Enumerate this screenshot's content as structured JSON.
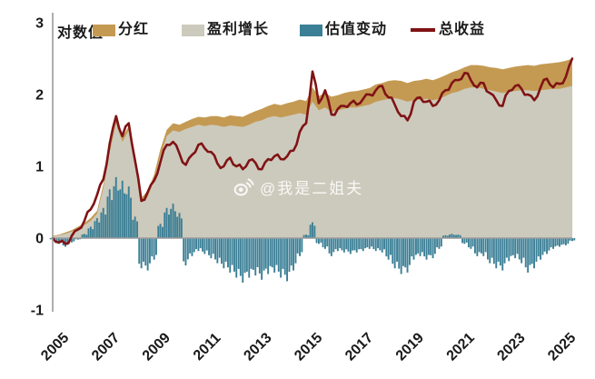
{
  "chart": {
    "y_axis_label": "对数值",
    "watermark_text": "@我是二姐夫",
    "legend": [
      {
        "label": "分红",
        "color": "#C49A53",
        "kind": "area"
      },
      {
        "label": "盈利增长",
        "color": "#CCCABC",
        "kind": "area"
      },
      {
        "label": "估值变动",
        "color": "#3B7F96",
        "kind": "bar"
      },
      {
        "label": "总收益",
        "color": "#801315",
        "kind": "line"
      }
    ],
    "colors": {
      "dividend_area": "#C49A53",
      "earnings_area": "#CCCABC",
      "valuation_bar": "#3B7F96",
      "total_return_line": "#801315",
      "axis_line": "#9a9a9a",
      "zero_line": "#9b9b9b",
      "tick_text": "#1a1a1a",
      "watermark": "#ffffff"
    },
    "chart_data": {
      "type": "combo",
      "title": "",
      "ylabel": "对数值",
      "ylim": [
        -1,
        3
      ],
      "y_tick_labels": [
        "3",
        "2",
        "1",
        "0",
        "-1"
      ],
      "y_tick_values": [
        3,
        2,
        1,
        0,
        -1
      ],
      "x_tick_labels": [
        "2005",
        "2007",
        "2009",
        "2011",
        "2013",
        "2015",
        "2017",
        "2019",
        "2021",
        "2023",
        "2025"
      ],
      "x_tick_values": [
        2005,
        2007,
        2009,
        2011,
        2013,
        2015,
        2017,
        2019,
        2021,
        2023,
        2025
      ],
      "x_start": 2005.0,
      "x_step_years": 0.25,
      "x_end": 2025.5,
      "grid": "zero-line-only",
      "legend_position": "top",
      "note": "Cumulative log-return decomposition. Gold band = dividends (top edge values), gray area = earnings growth (top edge values), teal bars = valuation change (from zero), dark-red line = total return.",
      "series": [
        {
          "name": "分红",
          "type": "area-top-edge",
          "color": "#C49A53",
          "values": [
            0.03,
            0.05,
            0.08,
            0.11,
            0.16,
            0.21,
            0.28,
            0.38,
            0.75,
            1.25,
            1.65,
            1.4,
            1.56,
            1.07,
            0.56,
            0.66,
            0.88,
            1.24,
            1.51,
            1.6,
            1.58,
            1.62,
            1.66,
            1.69,
            1.68,
            1.7,
            1.7,
            1.68,
            1.71,
            1.7,
            1.69,
            1.73,
            1.77,
            1.8,
            1.84,
            1.87,
            1.85,
            1.88,
            1.9,
            1.93,
            1.91,
            2.1,
            1.98,
            2.02,
            1.97,
            1.99,
            2.02,
            2.04,
            2.05,
            2.07,
            2.09,
            2.14,
            2.16,
            2.19,
            2.2,
            2.19,
            2.16,
            2.19,
            2.2,
            2.22,
            2.2,
            2.23,
            2.27,
            2.31,
            2.34,
            2.38,
            2.41,
            2.41,
            2.4,
            2.38,
            2.37,
            2.35,
            2.37,
            2.39,
            2.4,
            2.41,
            2.4,
            2.42,
            2.43,
            2.44,
            2.45,
            2.47,
            2.5
          ]
        },
        {
          "name": "盈利增长",
          "type": "area-top-edge",
          "color": "#CCCABC",
          "values": [
            0.02,
            0.04,
            0.06,
            0.09,
            0.13,
            0.18,
            0.24,
            0.34,
            0.7,
            1.2,
            1.6,
            1.34,
            1.5,
            1.0,
            0.49,
            0.58,
            0.8,
            1.15,
            1.42,
            1.5,
            1.48,
            1.52,
            1.55,
            1.58,
            1.56,
            1.58,
            1.57,
            1.55,
            1.57,
            1.56,
            1.55,
            1.58,
            1.62,
            1.64,
            1.68,
            1.7,
            1.68,
            1.7,
            1.72,
            1.74,
            1.72,
            1.9,
            1.78,
            1.82,
            1.76,
            1.78,
            1.8,
            1.82,
            1.82,
            1.84,
            1.86,
            1.9,
            1.92,
            1.94,
            1.95,
            1.93,
            1.9,
            1.92,
            1.93,
            1.94,
            1.92,
            1.94,
            1.98,
            2.02,
            2.04,
            2.08,
            2.1,
            2.1,
            2.08,
            2.06,
            2.04,
            2.02,
            2.04,
            2.05,
            2.06,
            2.06,
            2.05,
            2.06,
            2.07,
            2.08,
            2.08,
            2.1,
            2.12
          ]
        },
        {
          "name": "估值变动",
          "type": "bar",
          "color": "#3B7F96",
          "values": [
            -0.02,
            -0.08,
            -0.12,
            -0.06,
            -0.02,
            0.06,
            0.16,
            0.28,
            0.42,
            0.68,
            0.85,
            0.8,
            0.72,
            0.3,
            -0.42,
            -0.45,
            -0.3,
            0.2,
            0.42,
            0.48,
            0.35,
            -0.38,
            -0.25,
            -0.18,
            -0.22,
            -0.28,
            -0.35,
            -0.42,
            -0.48,
            -0.55,
            -0.62,
            -0.55,
            -0.52,
            -0.58,
            -0.5,
            -0.48,
            -0.55,
            -0.6,
            -0.45,
            -0.25,
            0.05,
            0.22,
            -0.08,
            -0.15,
            -0.25,
            -0.18,
            -0.2,
            -0.22,
            -0.2,
            -0.18,
            -0.15,
            -0.18,
            -0.2,
            -0.3,
            -0.42,
            -0.5,
            -0.48,
            -0.3,
            -0.25,
            -0.3,
            -0.28,
            -0.15,
            0.04,
            0.06,
            0.05,
            -0.08,
            -0.15,
            -0.25,
            -0.25,
            -0.35,
            -0.42,
            -0.45,
            -0.32,
            -0.28,
            -0.35,
            -0.48,
            -0.42,
            -0.3,
            -0.22,
            -0.15,
            -0.12,
            -0.1,
            -0.04
          ]
        },
        {
          "name": "总收益",
          "type": "line",
          "color": "#801315",
          "values": [
            0.0,
            -0.06,
            -0.08,
            0.03,
            0.12,
            0.24,
            0.4,
            0.6,
            0.82,
            1.32,
            1.7,
            1.42,
            1.6,
            1.08,
            0.52,
            0.64,
            0.8,
            1.06,
            1.3,
            1.34,
            1.18,
            1.02,
            1.16,
            1.3,
            1.25,
            1.2,
            1.04,
            1.0,
            1.12,
            1.0,
            0.96,
            1.08,
            1.05,
            0.96,
            1.1,
            1.14,
            1.1,
            1.14,
            1.22,
            1.48,
            1.6,
            2.32,
            1.88,
            2.06,
            1.72,
            1.8,
            1.84,
            1.88,
            1.86,
            1.94,
            2.0,
            2.06,
            2.12,
            1.96,
            1.86,
            1.7,
            1.64,
            1.9,
            1.96,
            1.9,
            1.84,
            1.92,
            2.06,
            2.16,
            2.2,
            2.3,
            2.2,
            2.1,
            2.16,
            2.02,
            1.92,
            1.84,
            2.05,
            2.12,
            2.08,
            2.0,
            1.92,
            2.1,
            2.22,
            2.1,
            2.15,
            2.25,
            2.5
          ]
        }
      ]
    }
  }
}
